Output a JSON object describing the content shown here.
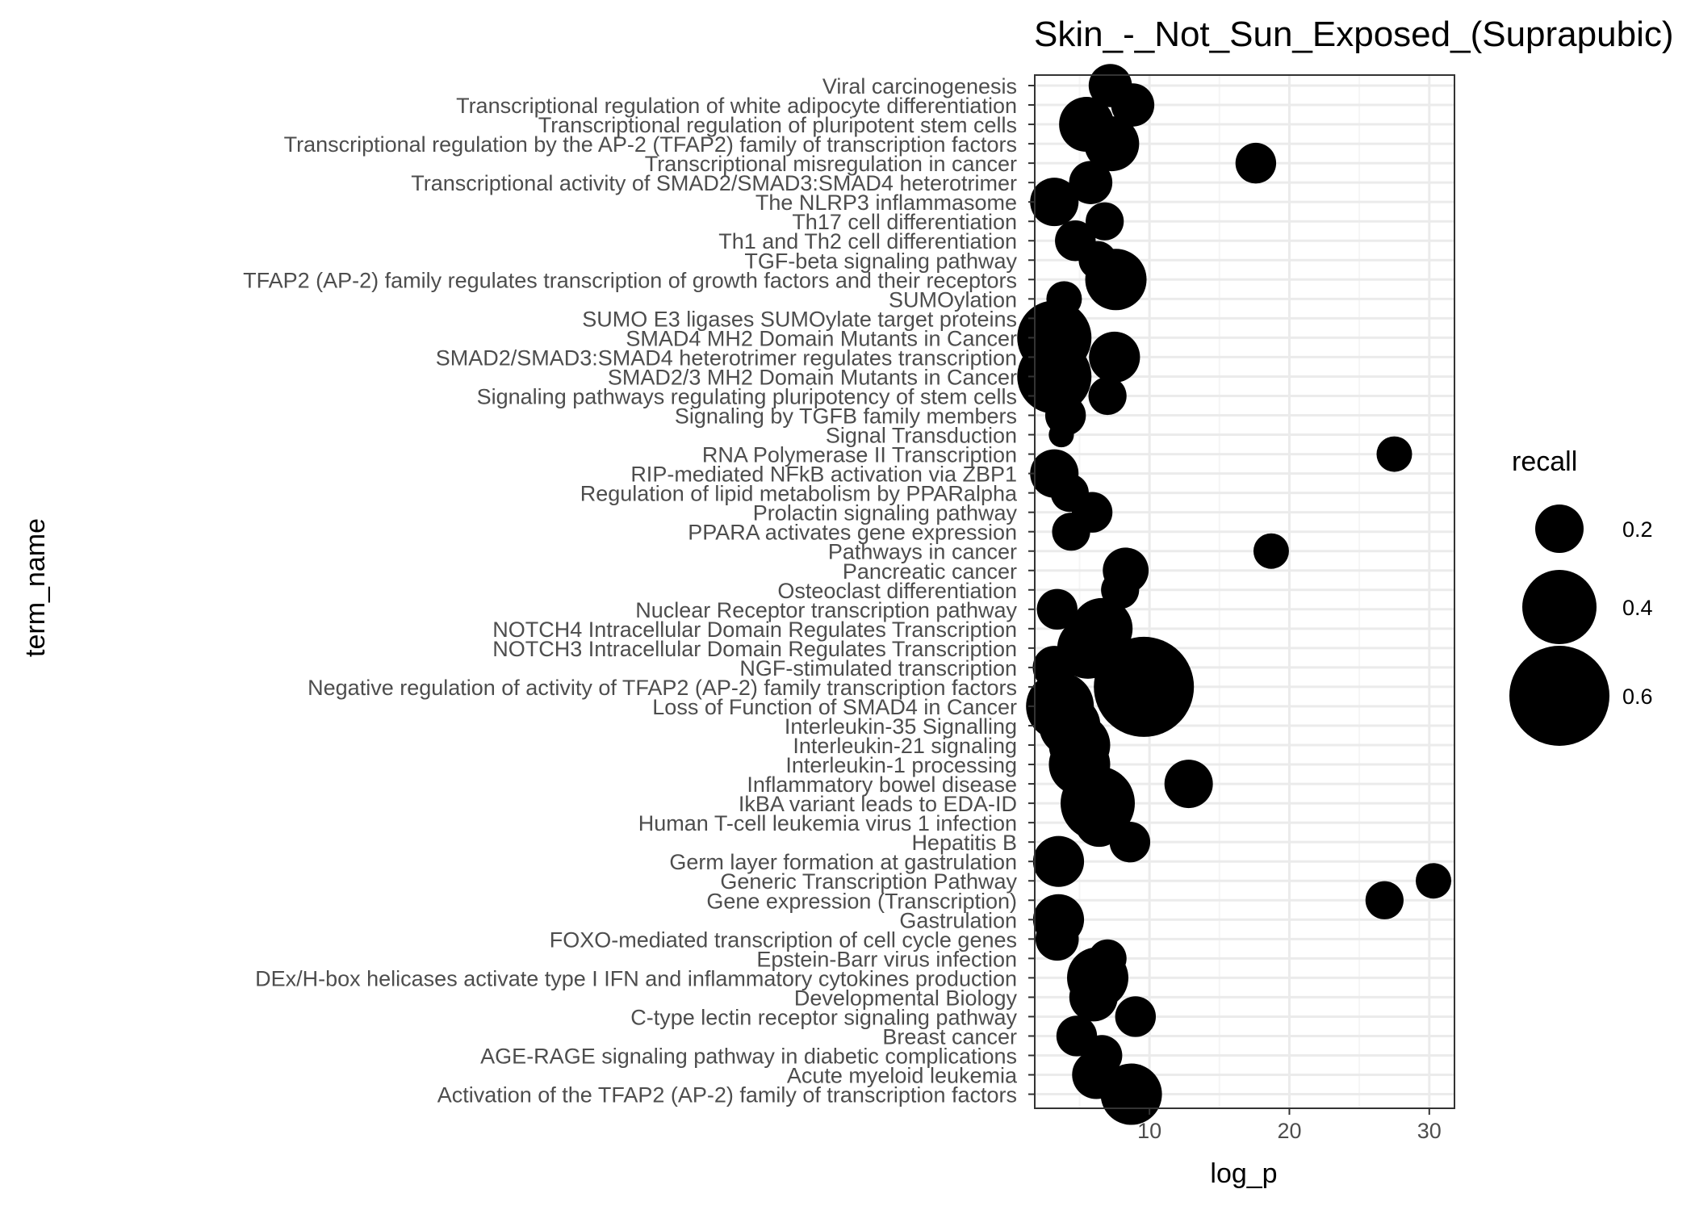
{
  "chart_data": {
    "type": "scatter",
    "title": "Skin_-_Not_Sun_Exposed_(Suprapubic)",
    "xlabel": "log_p",
    "ylabel": "term_name",
    "xlim": [
      1.8,
      31.8
    ],
    "x_ticks": [
      10,
      20,
      30
    ],
    "grid": true,
    "legend": {
      "title": "recall",
      "position": "right",
      "entries": [
        {
          "label": "0.2",
          "value": 0.2
        },
        {
          "label": "0.4",
          "value": 0.4
        },
        {
          "label": "0.6",
          "value": 0.6
        }
      ]
    },
    "points": [
      {
        "term": "Viral carcinogenesis",
        "log_p": 7.2,
        "recall": 0.16
      },
      {
        "term": "Transcriptional regulation of white adipocyte differentiation",
        "log_p": 8.8,
        "recall": 0.16
      },
      {
        "term": "Transcriptional regulation of pluripotent stem cells",
        "log_p": 5.5,
        "recall": 0.25
      },
      {
        "term": "Transcriptional regulation by the AP-2 (TFAP2) family of transcription factors",
        "log_p": 7.3,
        "recall": 0.25
      },
      {
        "term": "Transcriptional misregulation in cancer",
        "log_p": 17.6,
        "recall": 0.14
      },
      {
        "term": "Transcriptional activity of SMAD2/SMAD3:SMAD4 heterotrimer",
        "log_p": 5.8,
        "recall": 0.16
      },
      {
        "term": "The NLRP3 inflammasome",
        "log_p": 3.2,
        "recall": 0.2
      },
      {
        "term": "Th17 cell differentiation",
        "log_p": 6.8,
        "recall": 0.12
      },
      {
        "term": "Th1 and Th2 cell differentiation",
        "log_p": 4.7,
        "recall": 0.14
      },
      {
        "term": "TGF-beta signaling pathway",
        "log_p": 6.3,
        "recall": 0.12
      },
      {
        "term": "TFAP2 (AP-2) family regulates transcription of growth factors and their receptors",
        "log_p": 7.6,
        "recall": 0.3
      },
      {
        "term": "SUMOylation",
        "log_p": 3.9,
        "recall": 0.1
      },
      {
        "term": "SUMO E3 ligases SUMOylate target proteins",
        "log_p": 3.6,
        "recall": 0.1
      },
      {
        "term": "SMAD4 MH2 Domain Mutants in Cancer",
        "log_p": 3.2,
        "recall": 0.4
      },
      {
        "term": "SMAD2/SMAD3:SMAD4 heterotrimer regulates transcription",
        "log_p": 7.5,
        "recall": 0.22
      },
      {
        "term": "SMAD2/3 MH2 Domain Mutants in Cancer",
        "log_p": 3.2,
        "recall": 0.4
      },
      {
        "term": "Signaling pathways regulating pluripotency of stem cells",
        "log_p": 7.0,
        "recall": 0.12
      },
      {
        "term": "Signaling by TGFB family members",
        "log_p": 4.0,
        "recall": 0.14
      },
      {
        "term": "Signal Transduction",
        "log_p": 3.7,
        "recall": 0.02
      },
      {
        "term": "RNA Polymerase II Transcription",
        "log_p": 27.5,
        "recall": 0.1
      },
      {
        "term": "RIP-mediated NFkB activation via ZBP1",
        "log_p": 3.2,
        "recall": 0.2
      },
      {
        "term": "Regulation of lipid metabolism by PPARalpha",
        "log_p": 4.3,
        "recall": 0.12
      },
      {
        "term": "Prolactin signaling pathway",
        "log_p": 5.9,
        "recall": 0.14
      },
      {
        "term": "PPARA activates gene expression",
        "log_p": 4.4,
        "recall": 0.12
      },
      {
        "term": "Pathways in cancer",
        "log_p": 18.7,
        "recall": 0.1
      },
      {
        "term": "Pancreatic cancer",
        "log_p": 8.3,
        "recall": 0.18
      },
      {
        "term": "Osteoclast differentiation",
        "log_p": 7.9,
        "recall": 0.12
      },
      {
        "term": "Nuclear Receptor transcription pathway",
        "log_p": 3.4,
        "recall": 0.14
      },
      {
        "term": "NOTCH4 Intracellular Domain Regulates Transcription",
        "log_p": 6.6,
        "recall": 0.3
      },
      {
        "term": "NOTCH3 Intracellular Domain Regulates Transcription",
        "log_p": 5.6,
        "recall": 0.3
      },
      {
        "term": "NGF-stimulated transcription",
        "log_p": 3.2,
        "recall": 0.16
      },
      {
        "term": "Negative regulation of activity of TFAP2 (AP-2) family transcription factors",
        "log_p": 9.6,
        "recall": 0.6
      },
      {
        "term": "Loss of Function of SMAD4 in Cancer",
        "log_p": 3.6,
        "recall": 0.35
      },
      {
        "term": "Interleukin-35 Signalling",
        "log_p": 4.3,
        "recall": 0.3
      },
      {
        "term": "Interleukin-21 signaling",
        "log_p": 5.0,
        "recall": 0.3
      },
      {
        "term": "Interleukin-1 processing",
        "log_p": 5.0,
        "recall": 0.3
      },
      {
        "term": "Inflammatory bowel disease",
        "log_p": 12.8,
        "recall": 0.2
      },
      {
        "term": "IkBA variant leads to EDA-ID",
        "log_p": 6.3,
        "recall": 0.4
      },
      {
        "term": "Human T-cell leukemia virus 1 infection",
        "log_p": 6.4,
        "recall": 0.2
      },
      {
        "term": "Hepatitis B",
        "log_p": 8.6,
        "recall": 0.14
      },
      {
        "term": "Germ layer formation at gastrulation",
        "log_p": 3.5,
        "recall": 0.22
      },
      {
        "term": "Generic Transcription Pathway",
        "log_p": 30.3,
        "recall": 0.1
      },
      {
        "term": "Gene expression (Transcription)",
        "log_p": 26.8,
        "recall": 0.12
      },
      {
        "term": "Gastrulation",
        "log_p": 3.5,
        "recall": 0.22
      },
      {
        "term": "FOXO-mediated transcription of cell cycle genes",
        "log_p": 3.4,
        "recall": 0.16
      },
      {
        "term": "Epstein-Barr virus infection",
        "log_p": 7.0,
        "recall": 0.12
      },
      {
        "term": "DEx/H-box helicases activate type I IFN and inflammatory cytokines production ",
        "log_p": 6.3,
        "recall": 0.3
      },
      {
        "term": "Developmental Biology",
        "log_p": 6.0,
        "recall": 0.2
      },
      {
        "term": "C-type lectin receptor signaling pathway",
        "log_p": 9.0,
        "recall": 0.14
      },
      {
        "term": "Breast cancer",
        "log_p": 4.8,
        "recall": 0.14
      },
      {
        "term": "AGE-RAGE signaling pathway in diabetic complications",
        "log_p": 6.6,
        "recall": 0.14
      },
      {
        "term": "Acute myeloid leukemia",
        "log_p": 6.2,
        "recall": 0.2
      },
      {
        "term": "Activation of the TFAP2 (AP-2) family of transcription factors",
        "log_p": 8.7,
        "recall": 0.3
      }
    ]
  },
  "colors": {
    "point": "#000000",
    "panel_border": "#333333",
    "grid_major": "#ebebeb",
    "grid_minor": "#f5f5f5",
    "axis_text": "#4d4d4d",
    "title_text": "#000000"
  }
}
